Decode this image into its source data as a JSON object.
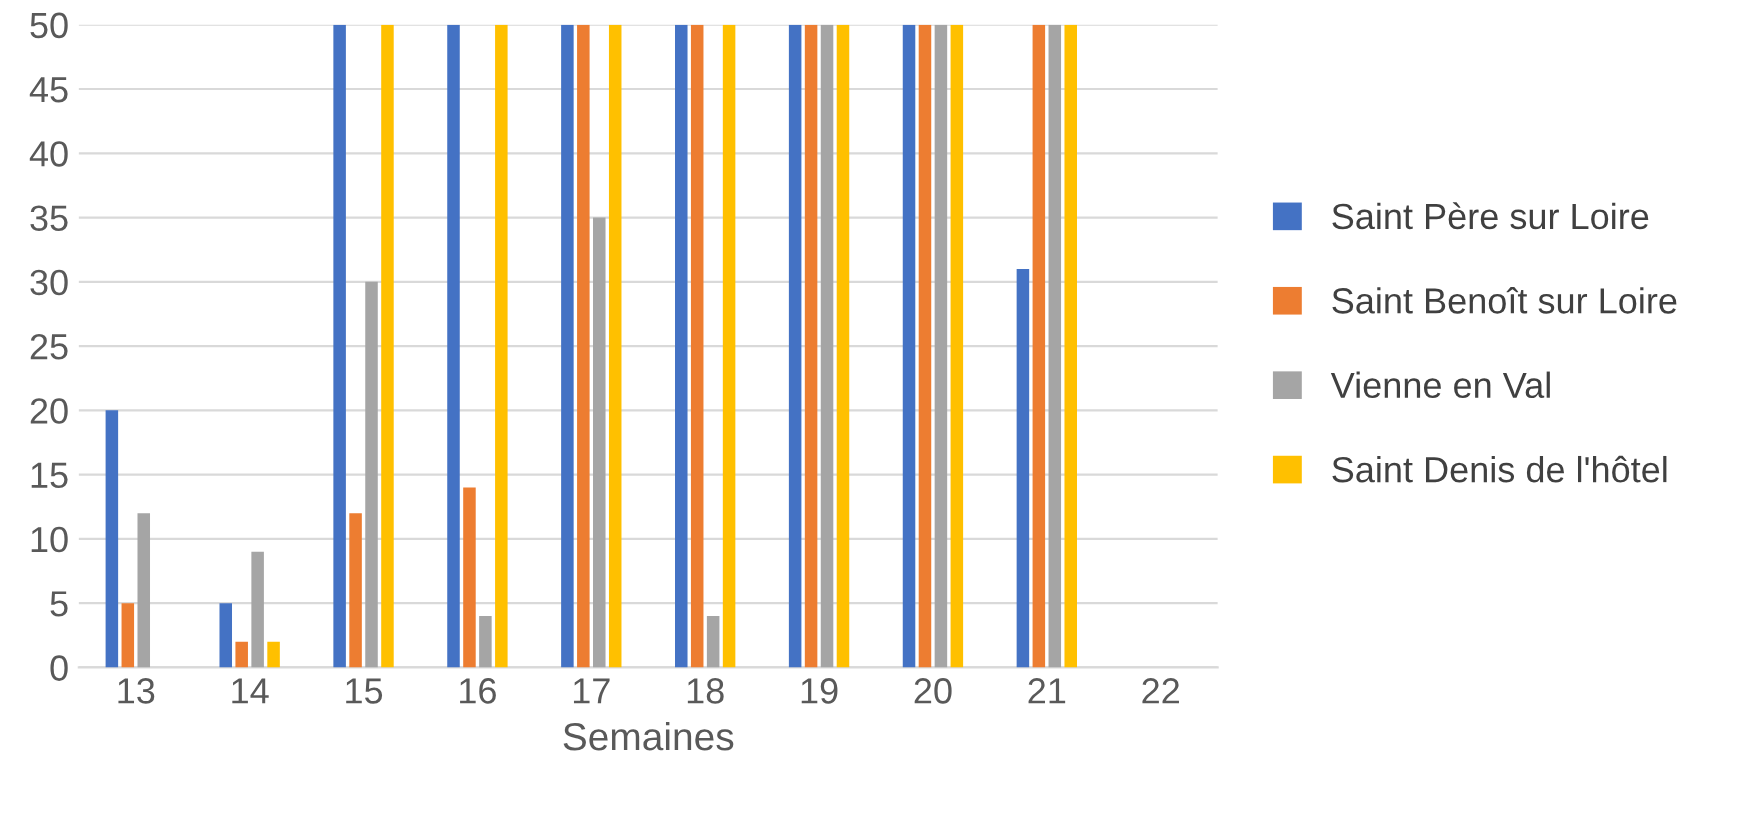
{
  "chart_data": {
    "type": "bar",
    "xlabel": "Semaines",
    "categories": [
      "13",
      "14",
      "15",
      "16",
      "17",
      "18",
      "19",
      "20",
      "21",
      "22"
    ],
    "series": [
      {
        "name": "Saint Père sur Loire",
        "color": "#4472c4",
        "values": [
          20,
          5,
          50,
          50,
          50,
          50,
          50,
          50,
          31,
          null
        ]
      },
      {
        "name": "Saint Benoît sur Loire",
        "color": "#ed7d31",
        "values": [
          5,
          2,
          12,
          14,
          50,
          50,
          50,
          50,
          50,
          null
        ]
      },
      {
        "name": "Vienne en Val",
        "color": "#a5a5a5",
        "values": [
          12,
          9,
          30,
          4,
          35,
          4,
          50,
          50,
          50,
          null
        ]
      },
      {
        "name": "Saint Denis de l'hôtel",
        "color": "#ffc000",
        "values": [
          null,
          2,
          50,
          50,
          50,
          50,
          50,
          50,
          50,
          null
        ]
      }
    ],
    "ylim": [
      0,
      50
    ],
    "yticks": [
      0,
      5,
      10,
      15,
      20,
      25,
      30,
      35,
      40,
      45,
      50
    ],
    "grid": "y",
    "legend": "right"
  }
}
